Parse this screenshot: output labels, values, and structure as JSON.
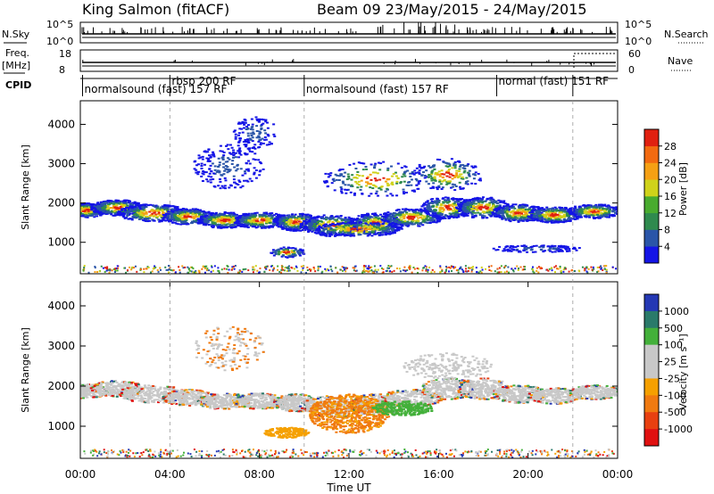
{
  "header": {
    "radar": "King Salmon (fitACF)",
    "beam_range": "Beam 09  23/May/2015 - 24/May/2015"
  },
  "summary": {
    "nsky_label": "N.Sky",
    "nsearch_label": "N.Search",
    "nsky_ticks": [
      "10^5",
      "10^0"
    ],
    "nsearch_ticks": [
      "10^5",
      "10^0"
    ],
    "freq_label": "Freq.",
    "freq_unit": "[MHz]",
    "freq_ticks": [
      "18",
      "8"
    ],
    "nave_label": "Nave",
    "nave_ticks": [
      "60",
      "0"
    ],
    "cpid_label": "CPID"
  },
  "cpid_segments": [
    {
      "label": "normalsound (fast) 157 RF",
      "start_h": 0.1,
      "end_h": 4.0,
      "row": "low"
    },
    {
      "label": "rbsp 200 RF",
      "start_h": 4.0,
      "end_h": 10.0,
      "row": "high"
    },
    {
      "label": "normalsound (fast) 157 RF",
      "start_h": 10.0,
      "end_h": 18.6,
      "row": "low"
    },
    {
      "label": "normal (fast) 151 RF",
      "start_h": 18.6,
      "end_h": 22.0,
      "row": "high"
    }
  ],
  "chart_data": [
    {
      "type": "heatmap",
      "name": "power",
      "ylabel": "Slant Range [km]",
      "yticks": [
        "1000",
        "2000",
        "3000",
        "4000"
      ],
      "ylim": [
        200,
        4600
      ],
      "xlim_hours": [
        0,
        24
      ],
      "colorbar": {
        "label": "Power [dB]",
        "ticks": [
          "4",
          "8",
          "12",
          "16",
          "20",
          "24",
          "28"
        ],
        "colors": [
          "#1414e6",
          "#2a55a8",
          "#2f8a4e",
          "#49ab2f",
          "#cfd21a",
          "#f5a014",
          "#f26a10",
          "#e02010"
        ]
      }
    },
    {
      "type": "heatmap",
      "name": "velocity",
      "ylabel": "Slant Range [km]",
      "yticks": [
        "1000",
        "2000",
        "3000",
        "4000"
      ],
      "ylim": [
        200,
        4600
      ],
      "xlim_hours": [
        0,
        24
      ],
      "colorbar": {
        "label": "Velocity [m s⁻¹]",
        "ticks": [
          "1000",
          "500",
          "100",
          "25",
          "-25",
          "-100",
          "-500",
          "-1000"
        ],
        "colors": [
          "#2438b4",
          "#2a7a6a",
          "#43b03a",
          "#c8c8c8",
          "#c8c8c8",
          "#f5a000",
          "#f07a10",
          "#e84010",
          "#e01010"
        ]
      }
    }
  ],
  "xaxis": {
    "ticks": [
      "00:00",
      "04:00",
      "08:00",
      "12:00",
      "16:00",
      "20:00",
      "00:00"
    ],
    "label": "Time UT"
  }
}
